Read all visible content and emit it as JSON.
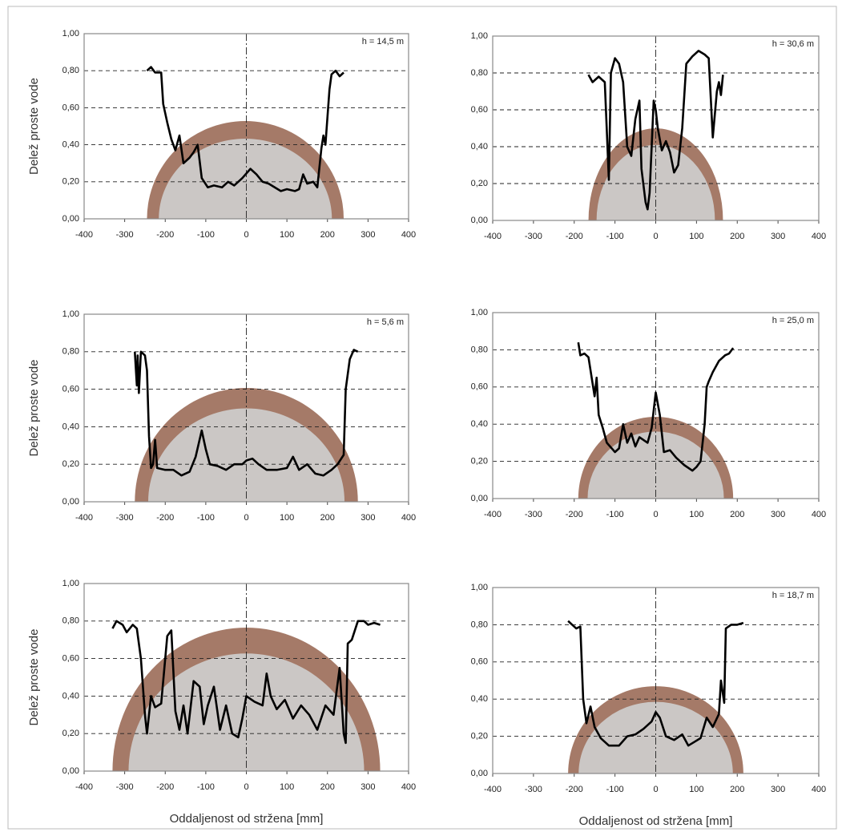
{
  "chart_data": [
    {
      "type": "line",
      "annotation": "h = 14,5 m",
      "ylabel": "Delež proste vode",
      "color": "#000000",
      "grid": true,
      "xlim": [
        -400,
        400
      ],
      "ylim": [
        0,
        1
      ],
      "xticks": [
        -400,
        -300,
        -200,
        -100,
        0,
        100,
        200,
        300,
        400
      ],
      "yticks": [
        {
          "value": 0,
          "label": "0,00"
        },
        {
          "value": 0.2,
          "label": "0,20"
        },
        {
          "value": 0.4,
          "label": "0,40"
        },
        {
          "value": 0.6,
          "label": "0,60"
        },
        {
          "value": 0.8,
          "label": "0,80"
        },
        {
          "value": 1,
          "label": "1,00"
        }
      ],
      "x": [
        -245,
        -235,
        -225,
        -210,
        -205,
        -195,
        -185,
        -175,
        -165,
        -155,
        -140,
        -130,
        -120,
        -110,
        -95,
        -80,
        -60,
        -45,
        -30,
        -10,
        10,
        25,
        40,
        55,
        70,
        85,
        100,
        120,
        130,
        140,
        150,
        165,
        175,
        185,
        190,
        195,
        200,
        205,
        210,
        220,
        230,
        240
      ],
      "values": [
        0.8,
        0.82,
        0.79,
        0.79,
        0.62,
        0.52,
        0.43,
        0.37,
        0.45,
        0.3,
        0.33,
        0.36,
        0.4,
        0.22,
        0.17,
        0.18,
        0.17,
        0.2,
        0.18,
        0.22,
        0.27,
        0.24,
        0.2,
        0.19,
        0.17,
        0.15,
        0.16,
        0.15,
        0.16,
        0.24,
        0.19,
        0.2,
        0.17,
        0.38,
        0.45,
        0.4,
        0.55,
        0.7,
        0.78,
        0.8,
        0.77,
        0.79
      ]
    },
    {
      "type": "line",
      "annotation": "h = 30,6 m",
      "color": "#000000",
      "grid": true,
      "xlim": [
        -400,
        400
      ],
      "ylim": [
        0,
        1
      ],
      "xticks": [
        -400,
        -300,
        -200,
        -100,
        0,
        100,
        200,
        300,
        400
      ],
      "yticks": [
        {
          "value": 0,
          "label": "0,00"
        },
        {
          "value": 0.2,
          "label": "0,20"
        },
        {
          "value": 0.4,
          "label": "0,40"
        },
        {
          "value": 0.6,
          "label": "0,60"
        },
        {
          "value": 0.8,
          "label": "0,80"
        },
        {
          "value": 1,
          "label": "1,00"
        }
      ],
      "x": [
        -165,
        -155,
        -140,
        -125,
        -115,
        -110,
        -100,
        -90,
        -80,
        -70,
        -60,
        -50,
        -40,
        -35,
        -25,
        -20,
        -15,
        -5,
        0,
        5,
        15,
        25,
        35,
        45,
        55,
        65,
        75,
        90,
        105,
        120,
        130,
        140,
        150,
        155,
        160,
        165
      ],
      "values": [
        0.79,
        0.75,
        0.78,
        0.75,
        0.22,
        0.8,
        0.88,
        0.85,
        0.75,
        0.4,
        0.35,
        0.55,
        0.65,
        0.28,
        0.1,
        0.06,
        0.15,
        0.65,
        0.6,
        0.5,
        0.38,
        0.43,
        0.37,
        0.26,
        0.3,
        0.5,
        0.85,
        0.89,
        0.92,
        0.9,
        0.88,
        0.45,
        0.7,
        0.75,
        0.68,
        0.79
      ]
    },
    {
      "type": "line",
      "annotation": "h = 5,6 m",
      "ylabel": "Delež proste vode",
      "color": "#000000",
      "grid": true,
      "xlim": [
        -400,
        400
      ],
      "ylim": [
        0,
        1
      ],
      "xticks": [
        -400,
        -300,
        -200,
        -100,
        0,
        100,
        200,
        300,
        400
      ],
      "yticks": [
        {
          "value": 0,
          "label": "0,00"
        },
        {
          "value": 0.2,
          "label": "0,20"
        },
        {
          "value": 0.4,
          "label": "0,40"
        },
        {
          "value": 0.6,
          "label": "0,60"
        },
        {
          "value": 0.8,
          "label": "0,80"
        },
        {
          "value": 1,
          "label": "1,00"
        }
      ],
      "x": [
        -275,
        -270,
        -268,
        -265,
        -260,
        -250,
        -245,
        -240,
        -235,
        -230,
        -225,
        -220,
        -200,
        -180,
        -160,
        -140,
        -125,
        -110,
        -100,
        -90,
        -70,
        -50,
        -30,
        -10,
        0,
        15,
        30,
        50,
        75,
        100,
        115,
        130,
        150,
        170,
        190,
        210,
        225,
        240,
        245,
        255,
        265,
        275
      ],
      "values": [
        0.8,
        0.62,
        0.78,
        0.58,
        0.8,
        0.78,
        0.7,
        0.35,
        0.18,
        0.2,
        0.33,
        0.18,
        0.17,
        0.17,
        0.14,
        0.16,
        0.24,
        0.38,
        0.28,
        0.2,
        0.19,
        0.17,
        0.2,
        0.2,
        0.22,
        0.23,
        0.2,
        0.17,
        0.17,
        0.18,
        0.24,
        0.17,
        0.2,
        0.15,
        0.14,
        0.17,
        0.2,
        0.25,
        0.6,
        0.76,
        0.81,
        0.8
      ]
    },
    {
      "type": "line",
      "annotation": "h = 25,0 m",
      "color": "#000000",
      "grid": true,
      "xlim": [
        -400,
        400
      ],
      "ylim": [
        0,
        1
      ],
      "xticks": [
        -400,
        -300,
        -200,
        -100,
        0,
        100,
        200,
        300,
        400
      ],
      "yticks": [
        {
          "value": 0,
          "label": "0,00"
        },
        {
          "value": 0.2,
          "label": "0,20"
        },
        {
          "value": 0.4,
          "label": "0,40"
        },
        {
          "value": 0.6,
          "label": "0,60"
        },
        {
          "value": 0.8,
          "label": "0,80"
        },
        {
          "value": 1,
          "label": "1,00"
        }
      ],
      "x": [
        -190,
        -185,
        -175,
        -165,
        -150,
        -145,
        -140,
        -130,
        -120,
        -100,
        -90,
        -80,
        -70,
        -60,
        -50,
        -40,
        -20,
        -10,
        0,
        10,
        20,
        35,
        50,
        70,
        90,
        100,
        110,
        120,
        125,
        130,
        140,
        155,
        170,
        180,
        190
      ],
      "values": [
        0.84,
        0.77,
        0.78,
        0.76,
        0.55,
        0.65,
        0.45,
        0.38,
        0.3,
        0.25,
        0.27,
        0.4,
        0.3,
        0.35,
        0.28,
        0.33,
        0.3,
        0.38,
        0.57,
        0.45,
        0.25,
        0.26,
        0.22,
        0.18,
        0.15,
        0.17,
        0.2,
        0.4,
        0.6,
        0.63,
        0.68,
        0.74,
        0.77,
        0.78,
        0.81
      ]
    },
    {
      "type": "line",
      "ylabel": "Delež proste vode",
      "xlabel": "Oddaljenost od stržena [mm]",
      "color": "#000000",
      "grid": true,
      "xlim": [
        -400,
        400
      ],
      "ylim": [
        0,
        1
      ],
      "xticks": [
        -400,
        -300,
        -200,
        -100,
        0,
        100,
        200,
        300,
        400
      ],
      "yticks": [
        {
          "value": 0,
          "label": "0,00"
        },
        {
          "value": 0.2,
          "label": "0,20"
        },
        {
          "value": 0.4,
          "label": "0,40"
        },
        {
          "value": 0.6,
          "label": "0,60"
        },
        {
          "value": 0.8,
          "label": "0,80"
        },
        {
          "value": 1,
          "label": "1,00"
        }
      ],
      "x": [
        -330,
        -320,
        -305,
        -295,
        -280,
        -270,
        -260,
        -250,
        -245,
        -235,
        -225,
        -210,
        -195,
        -185,
        -175,
        -165,
        -155,
        -145,
        -130,
        -115,
        -105,
        -95,
        -80,
        -65,
        -50,
        -35,
        -20,
        -10,
        0,
        20,
        40,
        50,
        60,
        75,
        95,
        115,
        135,
        155,
        175,
        195,
        215,
        230,
        240,
        245,
        250,
        260,
        275,
        290,
        300,
        315,
        330
      ],
      "values": [
        0.76,
        0.8,
        0.78,
        0.74,
        0.78,
        0.76,
        0.6,
        0.3,
        0.2,
        0.4,
        0.34,
        0.36,
        0.72,
        0.75,
        0.32,
        0.22,
        0.35,
        0.2,
        0.48,
        0.45,
        0.25,
        0.35,
        0.45,
        0.22,
        0.35,
        0.2,
        0.18,
        0.28,
        0.4,
        0.37,
        0.35,
        0.52,
        0.4,
        0.33,
        0.38,
        0.28,
        0.35,
        0.3,
        0.22,
        0.35,
        0.3,
        0.55,
        0.2,
        0.15,
        0.68,
        0.7,
        0.8,
        0.8,
        0.78,
        0.79,
        0.78
      ]
    },
    {
      "type": "line",
      "annotation": "h = 18,7 m",
      "xlabel": "Oddaljenost od stržena [mm]",
      "color": "#000000",
      "grid": true,
      "xlim": [
        -400,
        400
      ],
      "ylim": [
        0,
        1
      ],
      "xticks": [
        -400,
        -300,
        -200,
        -100,
        0,
        100,
        200,
        300,
        400
      ],
      "yticks": [
        {
          "value": 0,
          "label": "0,00"
        },
        {
          "value": 0.2,
          "label": "0,20"
        },
        {
          "value": 0.4,
          "label": "0,40"
        },
        {
          "value": 0.6,
          "label": "0,60"
        },
        {
          "value": 0.8,
          "label": "0,80"
        },
        {
          "value": 1,
          "label": "1,00"
        }
      ],
      "x": [
        -215,
        -205,
        -195,
        -185,
        -178,
        -170,
        -160,
        -150,
        -135,
        -115,
        -90,
        -70,
        -50,
        -30,
        -10,
        0,
        10,
        25,
        45,
        65,
        80,
        95,
        110,
        125,
        140,
        155,
        160,
        168,
        172,
        185,
        200,
        215
      ],
      "values": [
        0.82,
        0.8,
        0.78,
        0.79,
        0.4,
        0.27,
        0.36,
        0.25,
        0.19,
        0.15,
        0.15,
        0.2,
        0.21,
        0.24,
        0.28,
        0.33,
        0.3,
        0.2,
        0.18,
        0.21,
        0.15,
        0.17,
        0.19,
        0.3,
        0.25,
        0.32,
        0.5,
        0.38,
        0.78,
        0.8,
        0.8,
        0.81
      ]
    }
  ]
}
